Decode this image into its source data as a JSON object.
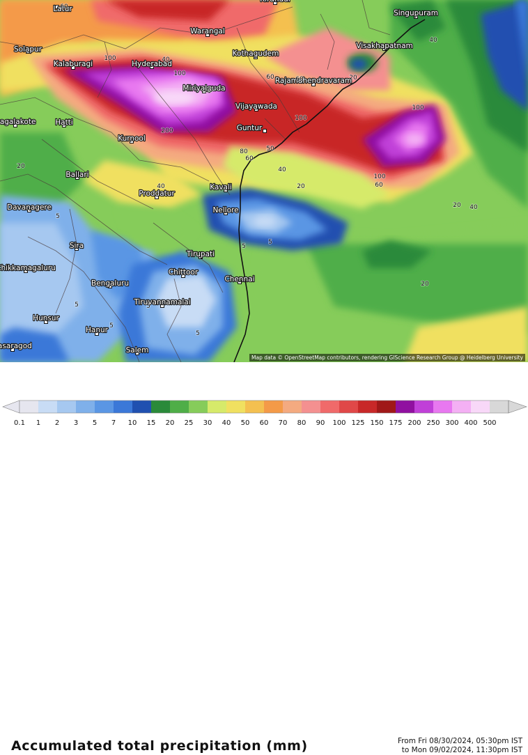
{
  "map": {
    "cities": [
      {
        "name": "Latur"
      },
      {
        "name": "Kirandul"
      },
      {
        "name": "Singupuram"
      },
      {
        "name": "Warangal"
      },
      {
        "name": "Solapur"
      },
      {
        "name": "Visakhapatnam"
      },
      {
        "name": "Kothagudem"
      },
      {
        "name": "Kalaburagi"
      },
      {
        "name": "Hyderabad"
      },
      {
        "name": "Rajamahendravaram"
      },
      {
        "name": "Miriyalguda"
      },
      {
        "name": "Vijayawada"
      },
      {
        "name": "Bagalakote"
      },
      {
        "name": "Hatti"
      },
      {
        "name": "Guntur"
      },
      {
        "name": "Kurnool"
      },
      {
        "name": "Ballari"
      },
      {
        "name": "Proddatur"
      },
      {
        "name": "Kavali"
      },
      {
        "name": "Davanagere"
      },
      {
        "name": "Nellore"
      },
      {
        "name": "Sira"
      },
      {
        "name": "Tirupati"
      },
      {
        "name": "Chikkamagaluru"
      },
      {
        "name": "Chittoor"
      },
      {
        "name": "Chennai"
      },
      {
        "name": "Bengaluru"
      },
      {
        "name": "Hunsur"
      },
      {
        "name": "Tiruvannamalai"
      },
      {
        "name": "Hanur"
      },
      {
        "name": "Salem"
      },
      {
        "name": "Kasaragod"
      }
    ],
    "contour_labels": [
      "60",
      "40",
      "20",
      "100",
      "60",
      "200",
      "100",
      "60",
      "100",
      "100",
      "20",
      "40",
      "80",
      "60",
      "50",
      "40",
      "40",
      "20",
      "100",
      "60",
      "20",
      "20",
      "5",
      "5",
      "5",
      "5",
      "5",
      "5",
      "5",
      "20",
      "40"
    ],
    "attribution": "Map data © OpenStreetMap contributors, rendering GIScience Research Group @ Heidelberg University"
  },
  "footer": {
    "title": "Accumulated total precipitation (mm)",
    "from": "From Fri 08/30/2024, 05:30pm IST",
    "to": "to Mon 09/02/2024, 11:30pm IST"
  },
  "legend": {
    "labels": [
      "0.1",
      "1",
      "2",
      "3",
      "5",
      "7",
      "10",
      "15",
      "20",
      "25",
      "30",
      "40",
      "50",
      "60",
      "70",
      "80",
      "90",
      "100",
      "125",
      "150",
      "175",
      "200",
      "250",
      "300",
      "400",
      "500"
    ],
    "colors": [
      "#e6e6ef",
      "#c8dcf5",
      "#a6c8f0",
      "#7fb0ea",
      "#5a96e4",
      "#3b78d8",
      "#2050b0",
      "#2a8a3a",
      "#4fae48",
      "#86cc5a",
      "#d6ea6a",
      "#f0e060",
      "#f4c050",
      "#f49a48",
      "#f4aa80",
      "#f49090",
      "#f06a6a",
      "#e04848",
      "#c82828",
      "#a01818",
      "#9010a0",
      "#c040d8",
      "#e878f0",
      "#f4b0f4",
      "#f8d8f8",
      "#d8d8d8"
    ]
  }
}
